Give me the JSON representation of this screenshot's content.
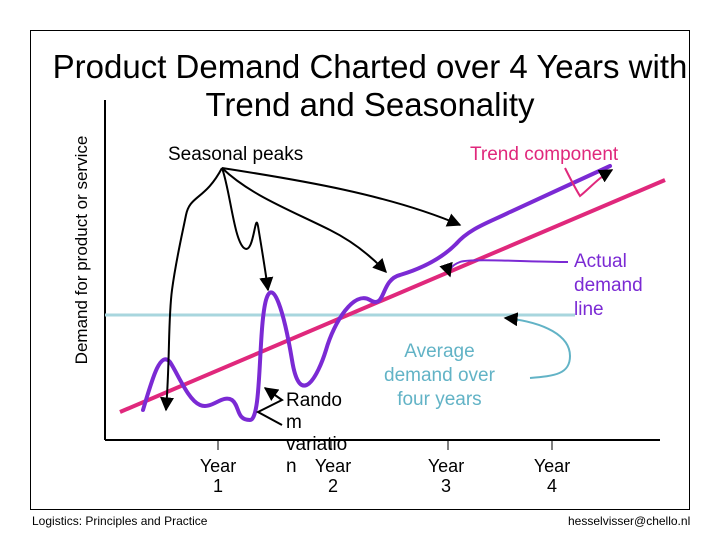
{
  "title": "Product Demand Charted over 4 Years with Trend and Seasonality",
  "y_axis_label": "Demand for product or service",
  "annotations": {
    "seasonal_peaks": "Seasonal peaks",
    "trend_component": "Trend component",
    "actual_demand_line": "Actual\ndemand\nline",
    "average_demand": "Average\ndemand over\nfour years",
    "random_variation": "Rando\nm\nvariatio\nn"
  },
  "x_ticks": [
    "Year\n1",
    "Year\n2",
    "Year\n3",
    "Year\n4"
  ],
  "footer": {
    "left": "Logistics: Principles and Practice",
    "right": "hesselvisser@chello.nl"
  },
  "colors": {
    "actual_demand": "#7b2ad4",
    "trend": "#e0287c",
    "average": "#a8d6de",
    "axis": "#000000",
    "arrow": "#000000"
  }
}
